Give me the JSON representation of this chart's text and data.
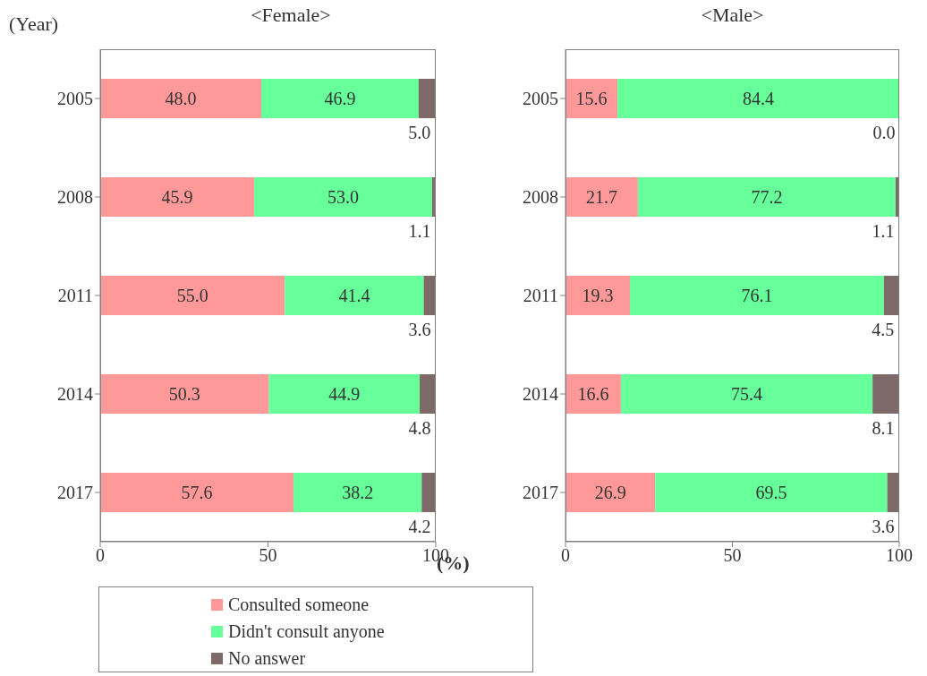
{
  "chart_data": [
    {
      "type": "bar",
      "orientation": "horizontal",
      "stacked": true,
      "title": "<Female>",
      "ylabel": "(Year)",
      "xlabel": "(%)",
      "categories": [
        "2005",
        "2008",
        "2011",
        "2014",
        "2017"
      ],
      "xlim": [
        0,
        100
      ],
      "xticks": [
        0,
        50,
        100
      ],
      "data_labels": true,
      "legend": "bottom",
      "grid": false,
      "series": [
        {
          "name": "Consulted someone",
          "color": "#ff9999",
          "values": [
            48.0,
            45.9,
            55.0,
            50.3,
            57.6
          ],
          "value_labels": [
            "48.0",
            "45.9",
            "55.0",
            "50.3",
            "57.6"
          ]
        },
        {
          "name": "Didn't consult anyone",
          "color": "#66ff99",
          "values": [
            46.9,
            53.0,
            41.4,
            44.9,
            38.2
          ],
          "value_labels": [
            "46.9",
            "53.0",
            "41.4",
            "44.9",
            "38.2"
          ]
        },
        {
          "name": "No answer",
          "color": "#7f6a6a",
          "values": [
            5.0,
            1.1,
            3.6,
            4.8,
            4.2
          ],
          "value_labels": [
            "5.0",
            "1.1",
            "3.6",
            "4.8",
            "4.2"
          ]
        }
      ]
    },
    {
      "type": "bar",
      "orientation": "horizontal",
      "stacked": true,
      "title": "<Male>",
      "categories": [
        "2005",
        "2008",
        "2011",
        "2014",
        "2017"
      ],
      "xlim": [
        0,
        100
      ],
      "xticks": [
        0,
        50,
        100
      ],
      "data_labels": true,
      "legend": false,
      "grid": false,
      "series": [
        {
          "color": "#ff9999",
          "values": [
            15.6,
            21.7,
            19.3,
            16.6,
            26.9
          ],
          "value_labels": [
            "15.6",
            "21.7",
            "19.3",
            "16.6",
            "26.9"
          ]
        },
        {
          "color": "#66ff99",
          "values": [
            84.4,
            77.2,
            76.1,
            75.4,
            69.5
          ],
          "value_labels": [
            "84.4",
            "77.2",
            "76.1",
            "75.4",
            "69.5"
          ]
        },
        {
          "color": "#7f6a6a",
          "values": [
            0.0,
            1.1,
            4.5,
            8.1,
            3.6
          ],
          "value_labels": [
            "0.0",
            "1.1",
            "4.5",
            "8.1",
            "3.6"
          ]
        }
      ]
    }
  ]
}
